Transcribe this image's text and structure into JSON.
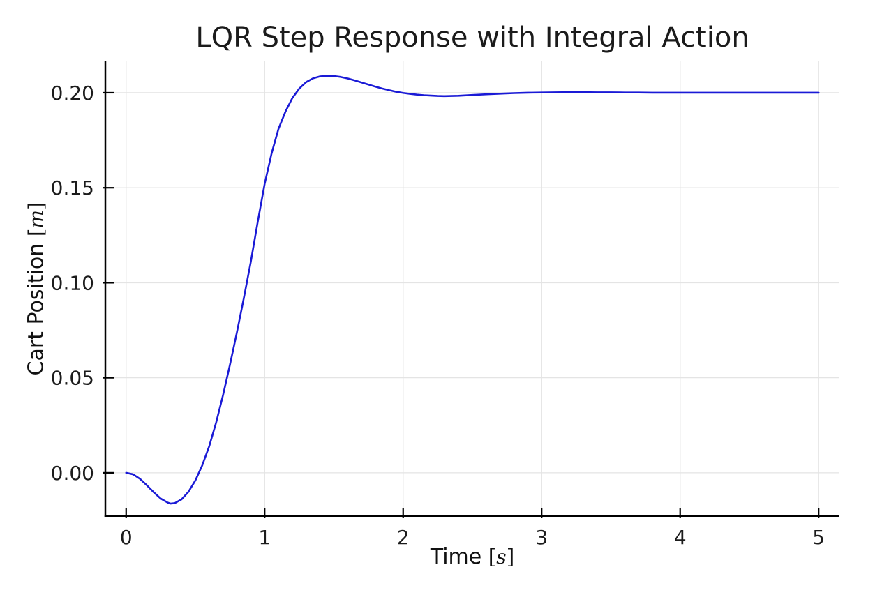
{
  "chart_data": {
    "type": "line",
    "title": "LQR Step Response with Integral Action",
    "xlabel": {
      "text": "Time",
      "open": "[",
      "unit": "s",
      "close": "]"
    },
    "ylabel": {
      "text": "Cart Position",
      "open": "[",
      "unit": "m",
      "close": "]"
    },
    "xlim": [
      -0.15,
      5.15
    ],
    "ylim": [
      -0.0228,
      0.2165
    ],
    "grid": true,
    "legend": "none",
    "x_ticks": {
      "values": [
        0,
        1,
        2,
        3,
        4,
        5
      ],
      "labels": [
        "0",
        "1",
        "2",
        "3",
        "4",
        "5"
      ]
    },
    "y_ticks": {
      "values": [
        0.0,
        0.05,
        0.1,
        0.15,
        0.2
      ],
      "labels": [
        "0.00",
        "0.05",
        "0.10",
        "0.15",
        "0.20"
      ]
    },
    "colors": {
      "line": "#1a1ad6",
      "grid": "#e4e4e4",
      "axis": "#000000",
      "tick_label": "#1c1c1c",
      "title": "#1b1b1b"
    },
    "series": [
      {
        "name": "cart-position",
        "color": "#1a1ad6",
        "line_width": 2.6,
        "x": [
          0,
          0.05,
          0.1,
          0.15,
          0.2,
          0.25,
          0.3,
          0.32,
          0.35,
          0.4,
          0.45,
          0.5,
          0.55,
          0.6,
          0.65,
          0.7,
          0.75,
          0.8,
          0.85,
          0.9,
          0.95,
          1.0,
          1.05,
          1.1,
          1.15,
          1.2,
          1.25,
          1.3,
          1.35,
          1.4,
          1.45,
          1.5,
          1.55,
          1.6,
          1.65,
          1.7,
          1.75,
          1.8,
          1.85,
          1.9,
          1.95,
          2.0,
          2.05,
          2.1,
          2.15,
          2.2,
          2.25,
          2.3,
          2.35,
          2.4,
          2.5,
          2.6,
          2.7,
          2.8,
          2.9,
          3.0,
          3.1,
          3.2,
          3.3,
          3.4,
          3.5,
          3.6,
          3.7,
          3.8,
          3.9,
          4.0,
          4.2,
          4.4,
          4.6,
          4.8,
          5.0
        ],
        "y": [
          0.0,
          -0.0008,
          -0.0032,
          -0.0066,
          -0.0103,
          -0.0136,
          -0.0157,
          -0.0162,
          -0.016,
          -0.014,
          -0.01,
          -0.004,
          0.004,
          0.014,
          0.0265,
          0.041,
          0.057,
          0.074,
          0.092,
          0.111,
          0.132,
          0.152,
          0.168,
          0.181,
          0.19,
          0.1972,
          0.2022,
          0.2056,
          0.2076,
          0.2086,
          0.2089,
          0.2088,
          0.2083,
          0.2075,
          0.2065,
          0.2054,
          0.2043,
          0.2032,
          0.2022,
          0.2013,
          0.2005,
          0.1999,
          0.1994,
          0.199,
          0.1987,
          0.1985,
          0.1983,
          0.1982,
          0.1983,
          0.1984,
          0.1988,
          0.1992,
          0.1995,
          0.1998,
          0.2,
          0.2001,
          0.2002,
          0.2003,
          0.2003,
          0.2002,
          0.2002,
          0.2001,
          0.2001,
          0.2,
          0.2,
          0.2,
          0.2,
          0.2,
          0.2,
          0.2,
          0.2
        ]
      }
    ]
  }
}
